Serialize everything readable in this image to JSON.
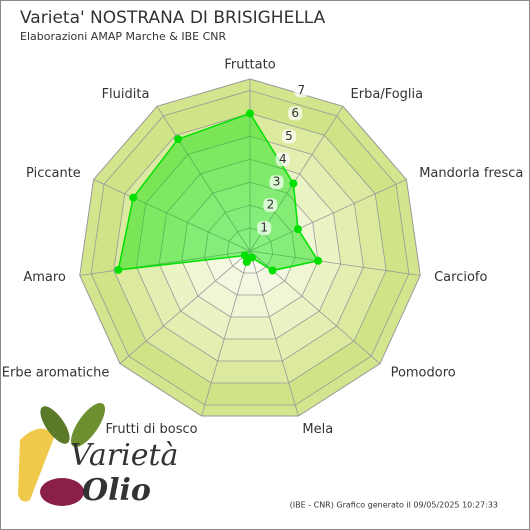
{
  "chart_data": {
    "type": "radar",
    "title": "Varieta' NOSTRANA DI BRISIGHELLA",
    "subtitle": "Elaborazioni AMAP Marche & IBE CNR",
    "categories": [
      "Fruttato",
      "Erba/Foglia",
      "Mandorla fresca",
      "Carciofo",
      "Pomodoro",
      "Mela",
      "Frutti di bosco",
      "Erbe aromatiche",
      "Amaro",
      "Piccante",
      "Fluidita"
    ],
    "series": [
      {
        "color": "#00e000",
        "values": [
          6,
          3.5,
          2.3,
          3,
          1.3,
          0.3,
          0.5,
          0.3,
          5.8,
          5.6,
          5.8
        ]
      }
    ],
    "rlim": [
      0,
      7.5
    ],
    "rticks": [
      1,
      2,
      3,
      4,
      5,
      6,
      7
    ],
    "grid": true,
    "source_note": "(IBE - CNR) Grafico generato il 09/05/2025 10:27:33"
  },
  "logo": {
    "word1": "Varietà",
    "word2": "Olio"
  }
}
